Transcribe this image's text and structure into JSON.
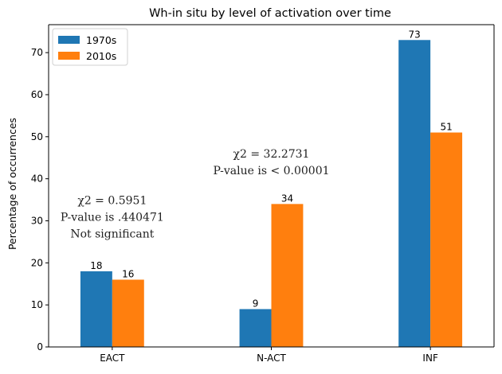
{
  "chart_data": {
    "type": "bar",
    "title": "Wh-in situ by level of activation over time",
    "xlabel": "",
    "ylabel": "Percentage of occurrences",
    "categories": [
      "EACT",
      "N-ACT",
      "INF"
    ],
    "series": [
      {
        "name": "1970s",
        "color": "#1f77b4",
        "values": [
          18,
          9,
          73
        ]
      },
      {
        "name": "2010s",
        "color": "#ff7f0e",
        "values": [
          16,
          34,
          51
        ]
      }
    ],
    "ylim": [
      0,
      76.65
    ],
    "yticks": [
      0,
      10,
      20,
      30,
      40,
      50,
      60,
      70
    ],
    "grid": false,
    "legend_placement": "top-left",
    "annotations": [
      {
        "category": "EACT",
        "y": 34,
        "lines": [
          "χ2 = 0.5951",
          "P-value is .440471",
          "Not significant"
        ]
      },
      {
        "category": "N-ACT",
        "y": 45,
        "lines": [
          "χ2 = 32.2731",
          "P-value is < 0.00001"
        ]
      }
    ]
  }
}
